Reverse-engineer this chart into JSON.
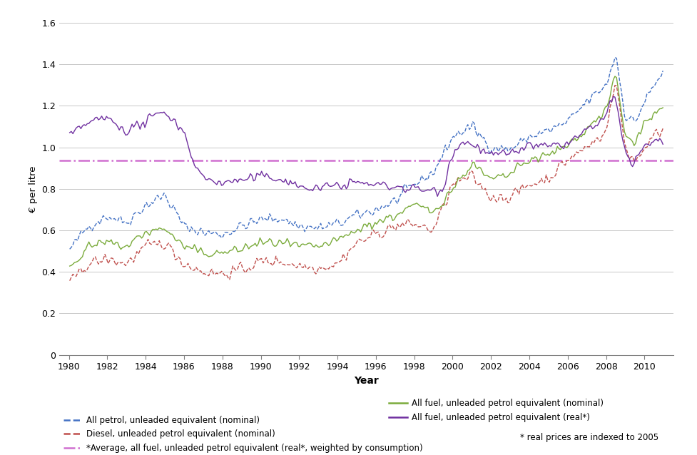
{
  "ylabel": "€ per litre",
  "xlabel": "Year",
  "ylim": [
    0,
    1.6
  ],
  "yticks": [
    0,
    0.2,
    0.4,
    0.6,
    0.8,
    1.0,
    1.2,
    1.4,
    1.6
  ],
  "xlim": [
    1979.5,
    2011.5
  ],
  "xticks": [
    1980,
    1982,
    1984,
    1986,
    1988,
    1990,
    1992,
    1994,
    1996,
    1998,
    2000,
    2002,
    2004,
    2006,
    2008,
    2010
  ],
  "average_line_value": 0.935,
  "colors": {
    "petrol": "#4472C4",
    "diesel": "#C0504D",
    "fuel_nominal": "#7AAB3B",
    "fuel_real": "#7030A0",
    "average": "#D070D0",
    "grid": "#BEBEBE",
    "bg": "#FFFFFF"
  },
  "legend": {
    "petrol_label": "All petrol, unleaded equivalent (nominal)",
    "diesel_label": "Diesel, unleaded petrol equivalent (nominal)",
    "fuel_nominal_label": "All fuel, unleaded petrol equivalent (nominal)",
    "fuel_real_label": "All fuel, unleaded petrol equivalent (real*)",
    "average_label": "*Average, all fuel, unleaded petrol equivalent (real*, weighted by consumption)",
    "note": "* real prices are indexed to 2005"
  }
}
